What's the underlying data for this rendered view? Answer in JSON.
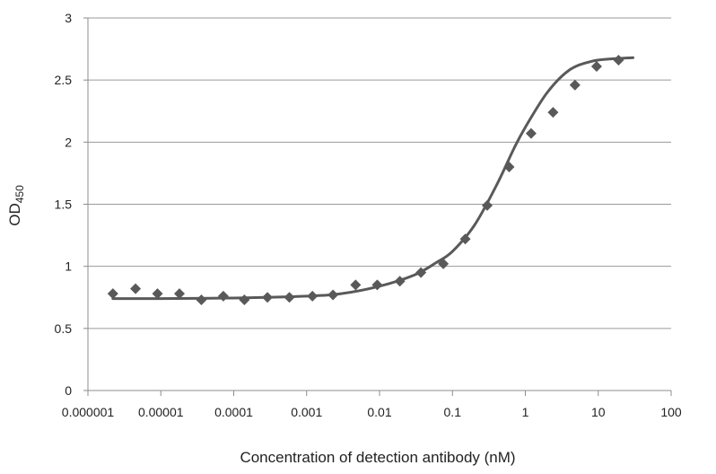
{
  "chart_data": {
    "type": "scatter",
    "xlabel": "Concentration of detection antibody (nM)",
    "ylabel": "OD",
    "ylabel_subscript": "450",
    "x_scale": "log",
    "xlim": [
      1e-06,
      100
    ],
    "ylim": [
      0,
      3
    ],
    "grid": "horizontal",
    "legend": "none",
    "x_ticks": [
      {
        "value": 1e-06,
        "label": "0.000001"
      },
      {
        "value": 1e-05,
        "label": "0.00001"
      },
      {
        "value": 0.0001,
        "label": "0.0001"
      },
      {
        "value": 0.001,
        "label": "0.001"
      },
      {
        "value": 0.01,
        "label": "0.01"
      },
      {
        "value": 0.1,
        "label": "0.1"
      },
      {
        "value": 1,
        "label": "1"
      },
      {
        "value": 10,
        "label": "10"
      },
      {
        "value": 100,
        "label": "100"
      }
    ],
    "y_ticks": [
      {
        "value": 0,
        "label": "0"
      },
      {
        "value": 0.5,
        "label": "0.5"
      },
      {
        "value": 1,
        "label": "1"
      },
      {
        "value": 1.5,
        "label": "1.5"
      },
      {
        "value": 2,
        "label": "2"
      },
      {
        "value": 2.5,
        "label": "2.5"
      },
      {
        "value": 3,
        "label": "3"
      }
    ],
    "series": [
      {
        "kind": "points",
        "marker": "diamond",
        "color": "#595959",
        "x": [
          2.2e-06,
          4.5e-06,
          9e-06,
          1.8e-05,
          3.6e-05,
          7.2e-05,
          0.00014,
          0.00029,
          0.00058,
          0.0012,
          0.0023,
          0.0047,
          0.0093,
          0.019,
          0.037,
          0.075,
          0.15,
          0.3,
          0.6,
          1.2,
          2.4,
          4.8,
          9.5,
          19
        ],
        "y": [
          0.78,
          0.82,
          0.78,
          0.78,
          0.73,
          0.76,
          0.73,
          0.75,
          0.75,
          0.76,
          0.77,
          0.85,
          0.85,
          0.88,
          0.95,
          1.02,
          1.22,
          1.49,
          1.8,
          2.07,
          2.24,
          2.46,
          2.61,
          2.66
        ]
      },
      {
        "kind": "fit-curve",
        "color": "#595959",
        "x": [
          2.2e-06,
          1e-05,
          0.0001,
          0.001,
          0.003,
          0.01,
          0.03,
          0.06,
          0.1,
          0.2,
          0.4,
          0.7,
          1,
          2,
          4,
          8,
          15,
          30
        ],
        "y": [
          0.74,
          0.74,
          0.745,
          0.76,
          0.78,
          0.84,
          0.93,
          1.03,
          1.12,
          1.33,
          1.65,
          1.95,
          2.12,
          2.4,
          2.58,
          2.65,
          2.67,
          2.68
        ]
      }
    ]
  }
}
